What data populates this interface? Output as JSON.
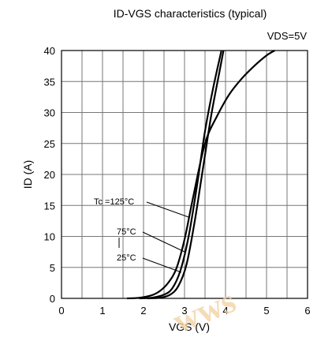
{
  "chart_data": {
    "type": "line",
    "title": "ID-VGS characteristics (typical)",
    "annotation": "VDS=5V",
    "xlabel": "VGS (V)",
    "ylabel": "ID (A)",
    "xlim": [
      0,
      6
    ],
    "ylim": [
      0,
      40
    ],
    "x_ticks": [
      0,
      1,
      2,
      3,
      4,
      5,
      6
    ],
    "y_ticks": [
      0,
      5,
      10,
      15,
      20,
      25,
      30,
      35,
      40
    ],
    "grid": true,
    "series": [
      {
        "name": "Tc =125°C",
        "x": [
          1.6,
          1.9,
          2.2,
          2.4,
          2.6,
          2.8,
          3.0,
          3.2,
          3.5,
          3.8,
          4.1,
          4.4,
          4.7,
          5.0,
          5.2
        ],
        "y": [
          0,
          0.1,
          0.5,
          1.2,
          2.5,
          4.8,
          9.5,
          16,
          25,
          29.5,
          33,
          35.5,
          37.5,
          39.2,
          40
        ]
      },
      {
        "name": "75°C",
        "x": [
          1.9,
          2.2,
          2.5,
          2.7,
          2.9,
          3.1,
          3.3,
          3.5,
          3.7,
          3.9
        ],
        "y": [
          0,
          0.1,
          0.6,
          1.6,
          4.5,
          10,
          18,
          27,
          34,
          40
        ]
      },
      {
        "name": "25°C",
        "x": [
          2.1,
          2.4,
          2.65,
          2.85,
          3.05,
          3.25,
          3.45,
          3.65,
          3.85,
          3.95
        ],
        "y": [
          0,
          0.1,
          0.6,
          2,
          5.5,
          12.5,
          21,
          29.5,
          36.5,
          40
        ]
      }
    ],
    "label_texts": [
      "Tc =125°C",
      "75°C",
      "25°C"
    ]
  }
}
